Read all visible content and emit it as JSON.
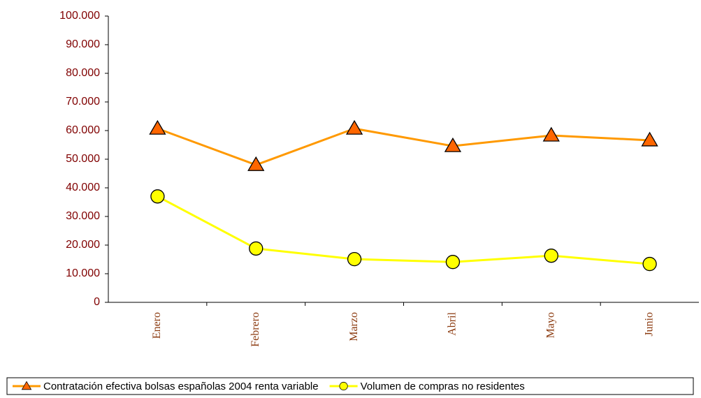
{
  "chart_data": {
    "type": "line",
    "categories": [
      "Enero",
      "Febrero",
      "Marzo",
      "Abril",
      "Mayo",
      "Junio"
    ],
    "series": [
      {
        "name": "Contratación efectiva bolsas españolas 2004 renta variable",
        "color": "#ff9900",
        "marker": "triangle",
        "marker_color": "#ff6600",
        "values": [
          60700,
          48000,
          60700,
          54600,
          58300,
          56600
        ]
      },
      {
        "name": "Volumen de compras no residentes",
        "color": "#ffff00",
        "marker": "circle",
        "marker_color": "#ffff00",
        "values": [
          37000,
          18800,
          15100,
          14100,
          16300,
          13400
        ]
      }
    ],
    "ylim": [
      0,
      100000
    ],
    "yticks": [
      0,
      {
        "value": 10000,
        "label": "10.000"
      },
      {
        "value": 20000,
        "label": "20.000"
      },
      {
        "value": 30000,
        "label": "30.000"
      },
      {
        "value": 40000,
        "label": "40.000"
      },
      {
        "value": 50000,
        "label": "50.000"
      },
      {
        "value": 60000,
        "label": "60.000"
      },
      {
        "value": 70000,
        "label": "70.000"
      },
      {
        "value": 80000,
        "label": "80.000"
      },
      {
        "value": 90000,
        "label": "90.000"
      },
      {
        "value": 100000,
        "label": "100.000"
      }
    ],
    "grid": false,
    "legend": "bottom"
  }
}
